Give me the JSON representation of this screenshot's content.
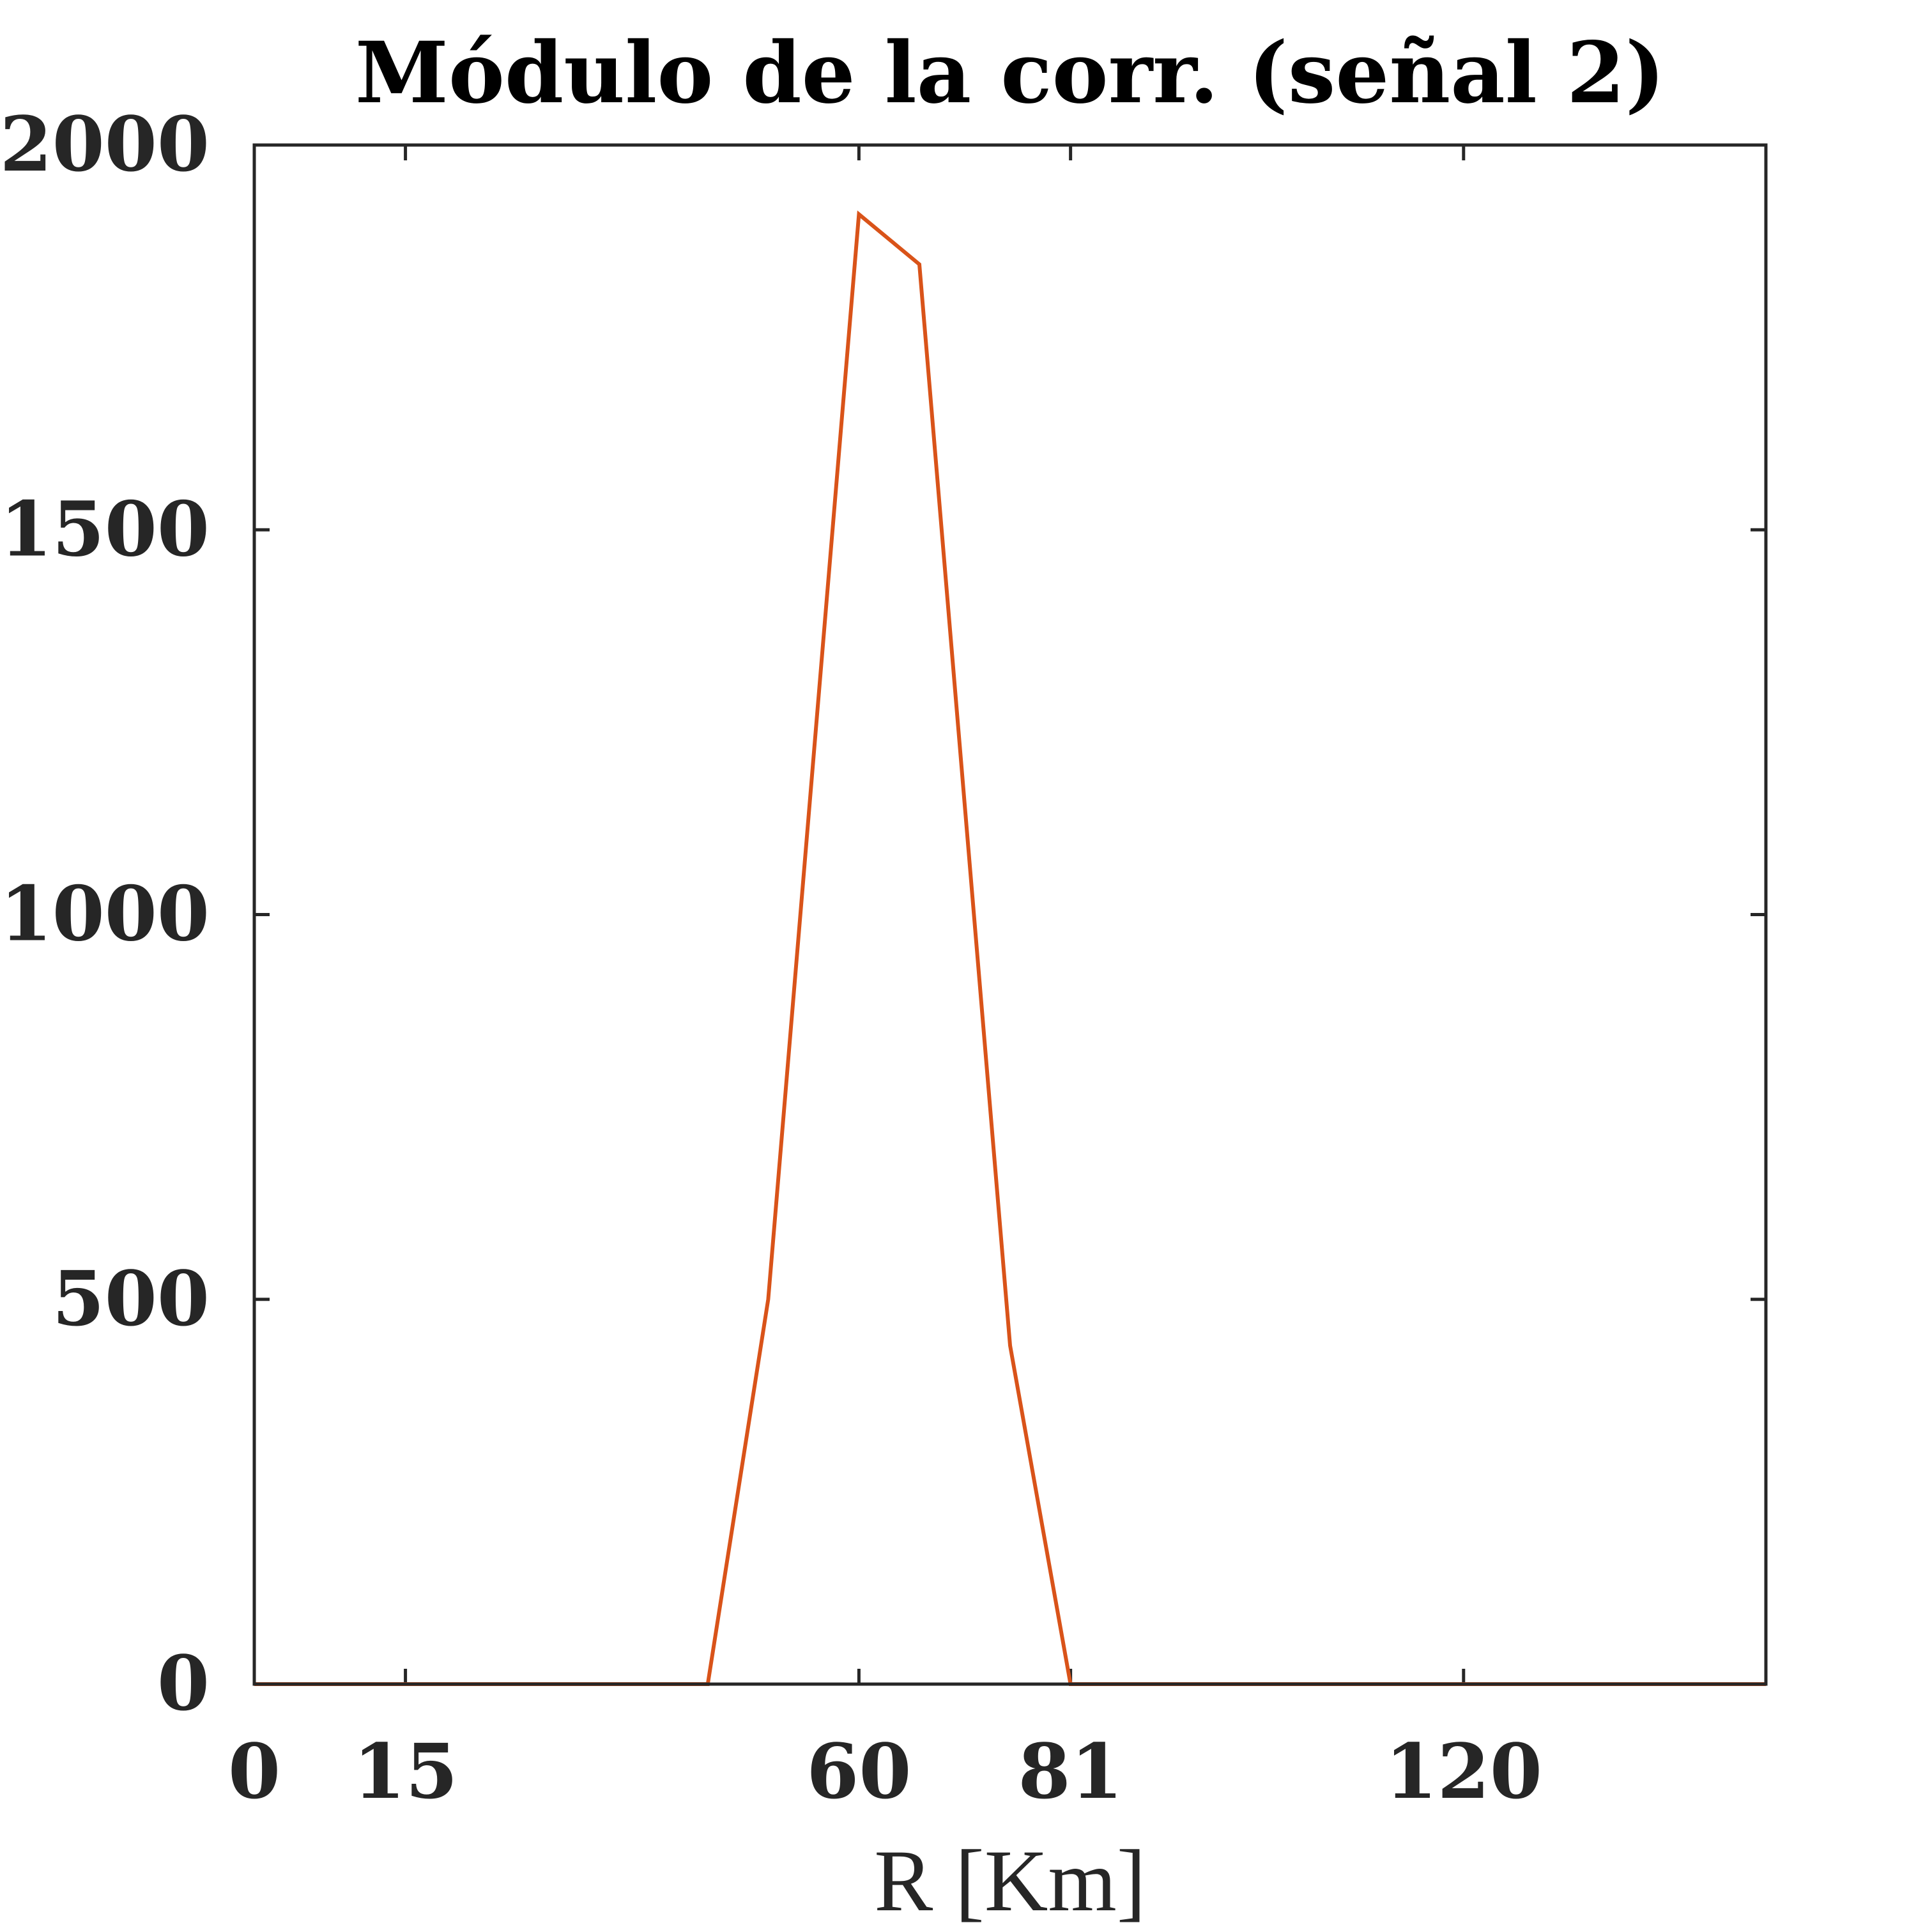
{
  "chart_data": {
    "type": "line",
    "title": "Módulo de la corr. (señal 2)",
    "xlabel": "R [Km]",
    "ylabel": "",
    "xlim": [
      0,
      150
    ],
    "ylim": [
      0,
      2000
    ],
    "xticks": [
      0,
      15,
      60,
      81,
      120
    ],
    "xtick_labels": [
      "0",
      "15",
      "60",
      "81",
      "120"
    ],
    "yticks": [
      0,
      500,
      1000,
      1500,
      2000
    ],
    "ytick_labels": [
      "0",
      "500",
      "1000",
      "1500",
      "2000"
    ],
    "grid": false,
    "legend": "none",
    "series": [
      {
        "color": "#D95319",
        "x": [
          0,
          15,
          45,
          51,
          60,
          66,
          75,
          81,
          90,
          120,
          150
        ],
        "y": [
          0,
          0,
          0,
          500,
          1910,
          1845,
          440,
          0,
          0,
          0,
          0
        ]
      }
    ]
  }
}
